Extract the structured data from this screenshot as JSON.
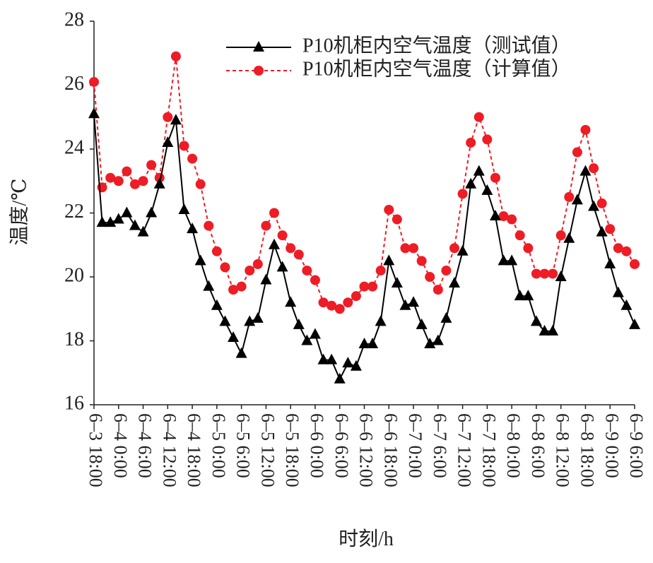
{
  "chart_data": {
    "type": "line",
    "y_label": "温度/℃",
    "x_label": "时刻/h",
    "x": [
      0,
      2,
      4,
      6,
      8,
      10,
      12,
      14,
      16,
      18,
      20,
      22,
      24,
      26,
      28,
      30,
      32,
      34,
      36,
      38,
      40,
      42,
      44,
      46,
      48,
      50,
      52,
      54,
      56,
      58,
      60,
      62,
      64,
      66,
      68,
      70,
      72,
      74,
      76,
      78,
      80,
      82,
      84,
      86,
      88,
      90,
      92,
      94,
      96,
      98,
      100,
      102,
      104,
      106,
      108,
      110,
      112,
      114,
      116,
      118,
      120,
      122,
      124,
      126,
      128,
      130,
      132
    ],
    "series": [
      {
        "name": "P10机柜内空气温度（测试值）",
        "color": "#000000",
        "marker": "triangle",
        "dashed": false,
        "values": [
          25.1,
          21.7,
          21.7,
          21.8,
          22.0,
          21.6,
          21.4,
          22.0,
          22.9,
          24.2,
          24.9,
          22.1,
          21.5,
          20.5,
          19.7,
          19.1,
          18.6,
          18.1,
          17.6,
          18.6,
          18.7,
          19.9,
          21.0,
          20.3,
          19.2,
          18.5,
          18.0,
          18.2,
          17.4,
          17.4,
          16.8,
          17.3,
          17.2,
          17.9,
          17.9,
          18.6,
          20.5,
          19.8,
          19.1,
          19.2,
          18.5,
          17.9,
          18.0,
          18.7,
          19.8,
          20.8,
          22.9,
          23.3,
          22.7,
          21.9,
          20.5,
          20.5,
          19.4,
          19.4,
          18.6,
          18.3,
          18.3,
          20.0,
          21.2,
          22.4,
          23.3,
          22.2,
          21.4,
          20.4,
          19.5,
          19.1,
          18.5
        ]
      },
      {
        "name": "P10机柜内空气温度（计算值）",
        "color": "#ee1c25",
        "marker": "circle",
        "dashed": true,
        "values": [
          26.1,
          22.8,
          23.1,
          23.0,
          23.3,
          22.9,
          23.0,
          23.5,
          23.1,
          25.0,
          26.9,
          24.1,
          23.7,
          22.9,
          21.6,
          20.8,
          20.3,
          19.6,
          19.7,
          20.2,
          20.4,
          21.6,
          22.0,
          21.3,
          20.9,
          20.7,
          20.2,
          19.9,
          19.2,
          19.1,
          19.0,
          19.2,
          19.4,
          19.7,
          19.7,
          20.2,
          22.1,
          21.8,
          20.9,
          20.9,
          20.5,
          20.0,
          19.6,
          20.2,
          20.9,
          22.6,
          24.2,
          25.0,
          24.3,
          23.1,
          21.9,
          21.8,
          21.3,
          20.9,
          20.1,
          20.1,
          20.1,
          21.3,
          22.5,
          23.9,
          24.6,
          23.4,
          22.3,
          21.5,
          20.9,
          20.8,
          20.4
        ]
      }
    ],
    "xlim": [
      0,
      132
    ],
    "xticks": [
      {
        "value": 0,
        "label": "6–3 18:00"
      },
      {
        "value": 6,
        "label": "6–4 0:00"
      },
      {
        "value": 12,
        "label": "6–4 6:00"
      },
      {
        "value": 18,
        "label": "6–4 12:00"
      },
      {
        "value": 24,
        "label": "6–4 18:00"
      },
      {
        "value": 30,
        "label": "6–5 0:00"
      },
      {
        "value": 36,
        "label": "6–5 6:00"
      },
      {
        "value": 42,
        "label": "6–5 12:00"
      },
      {
        "value": 48,
        "label": "6–5 18:00"
      },
      {
        "value": 54,
        "label": "6–6 0:00"
      },
      {
        "value": 60,
        "label": "6–6 6:00"
      },
      {
        "value": 66,
        "label": "6–6 12:00"
      },
      {
        "value": 72,
        "label": "6–6 18:00"
      },
      {
        "value": 78,
        "label": "6–7 0:00"
      },
      {
        "value": 84,
        "label": "6–7 6:00"
      },
      {
        "value": 90,
        "label": "6–7 12:00"
      },
      {
        "value": 96,
        "label": "6–7 18:00"
      },
      {
        "value": 102,
        "label": "6–8 0:00"
      },
      {
        "value": 108,
        "label": "6–8 6:00"
      },
      {
        "value": 114,
        "label": "6–8 12:00"
      },
      {
        "value": 120,
        "label": "6–8 18:00"
      },
      {
        "value": 126,
        "label": "6–9 0:00"
      },
      {
        "value": 132,
        "label": "6–9 6:00"
      }
    ],
    "ylim": [
      16,
      28
    ],
    "yticks": [
      16,
      18,
      20,
      22,
      24,
      26,
      28
    ],
    "grid": false,
    "legend": "upper right"
  }
}
